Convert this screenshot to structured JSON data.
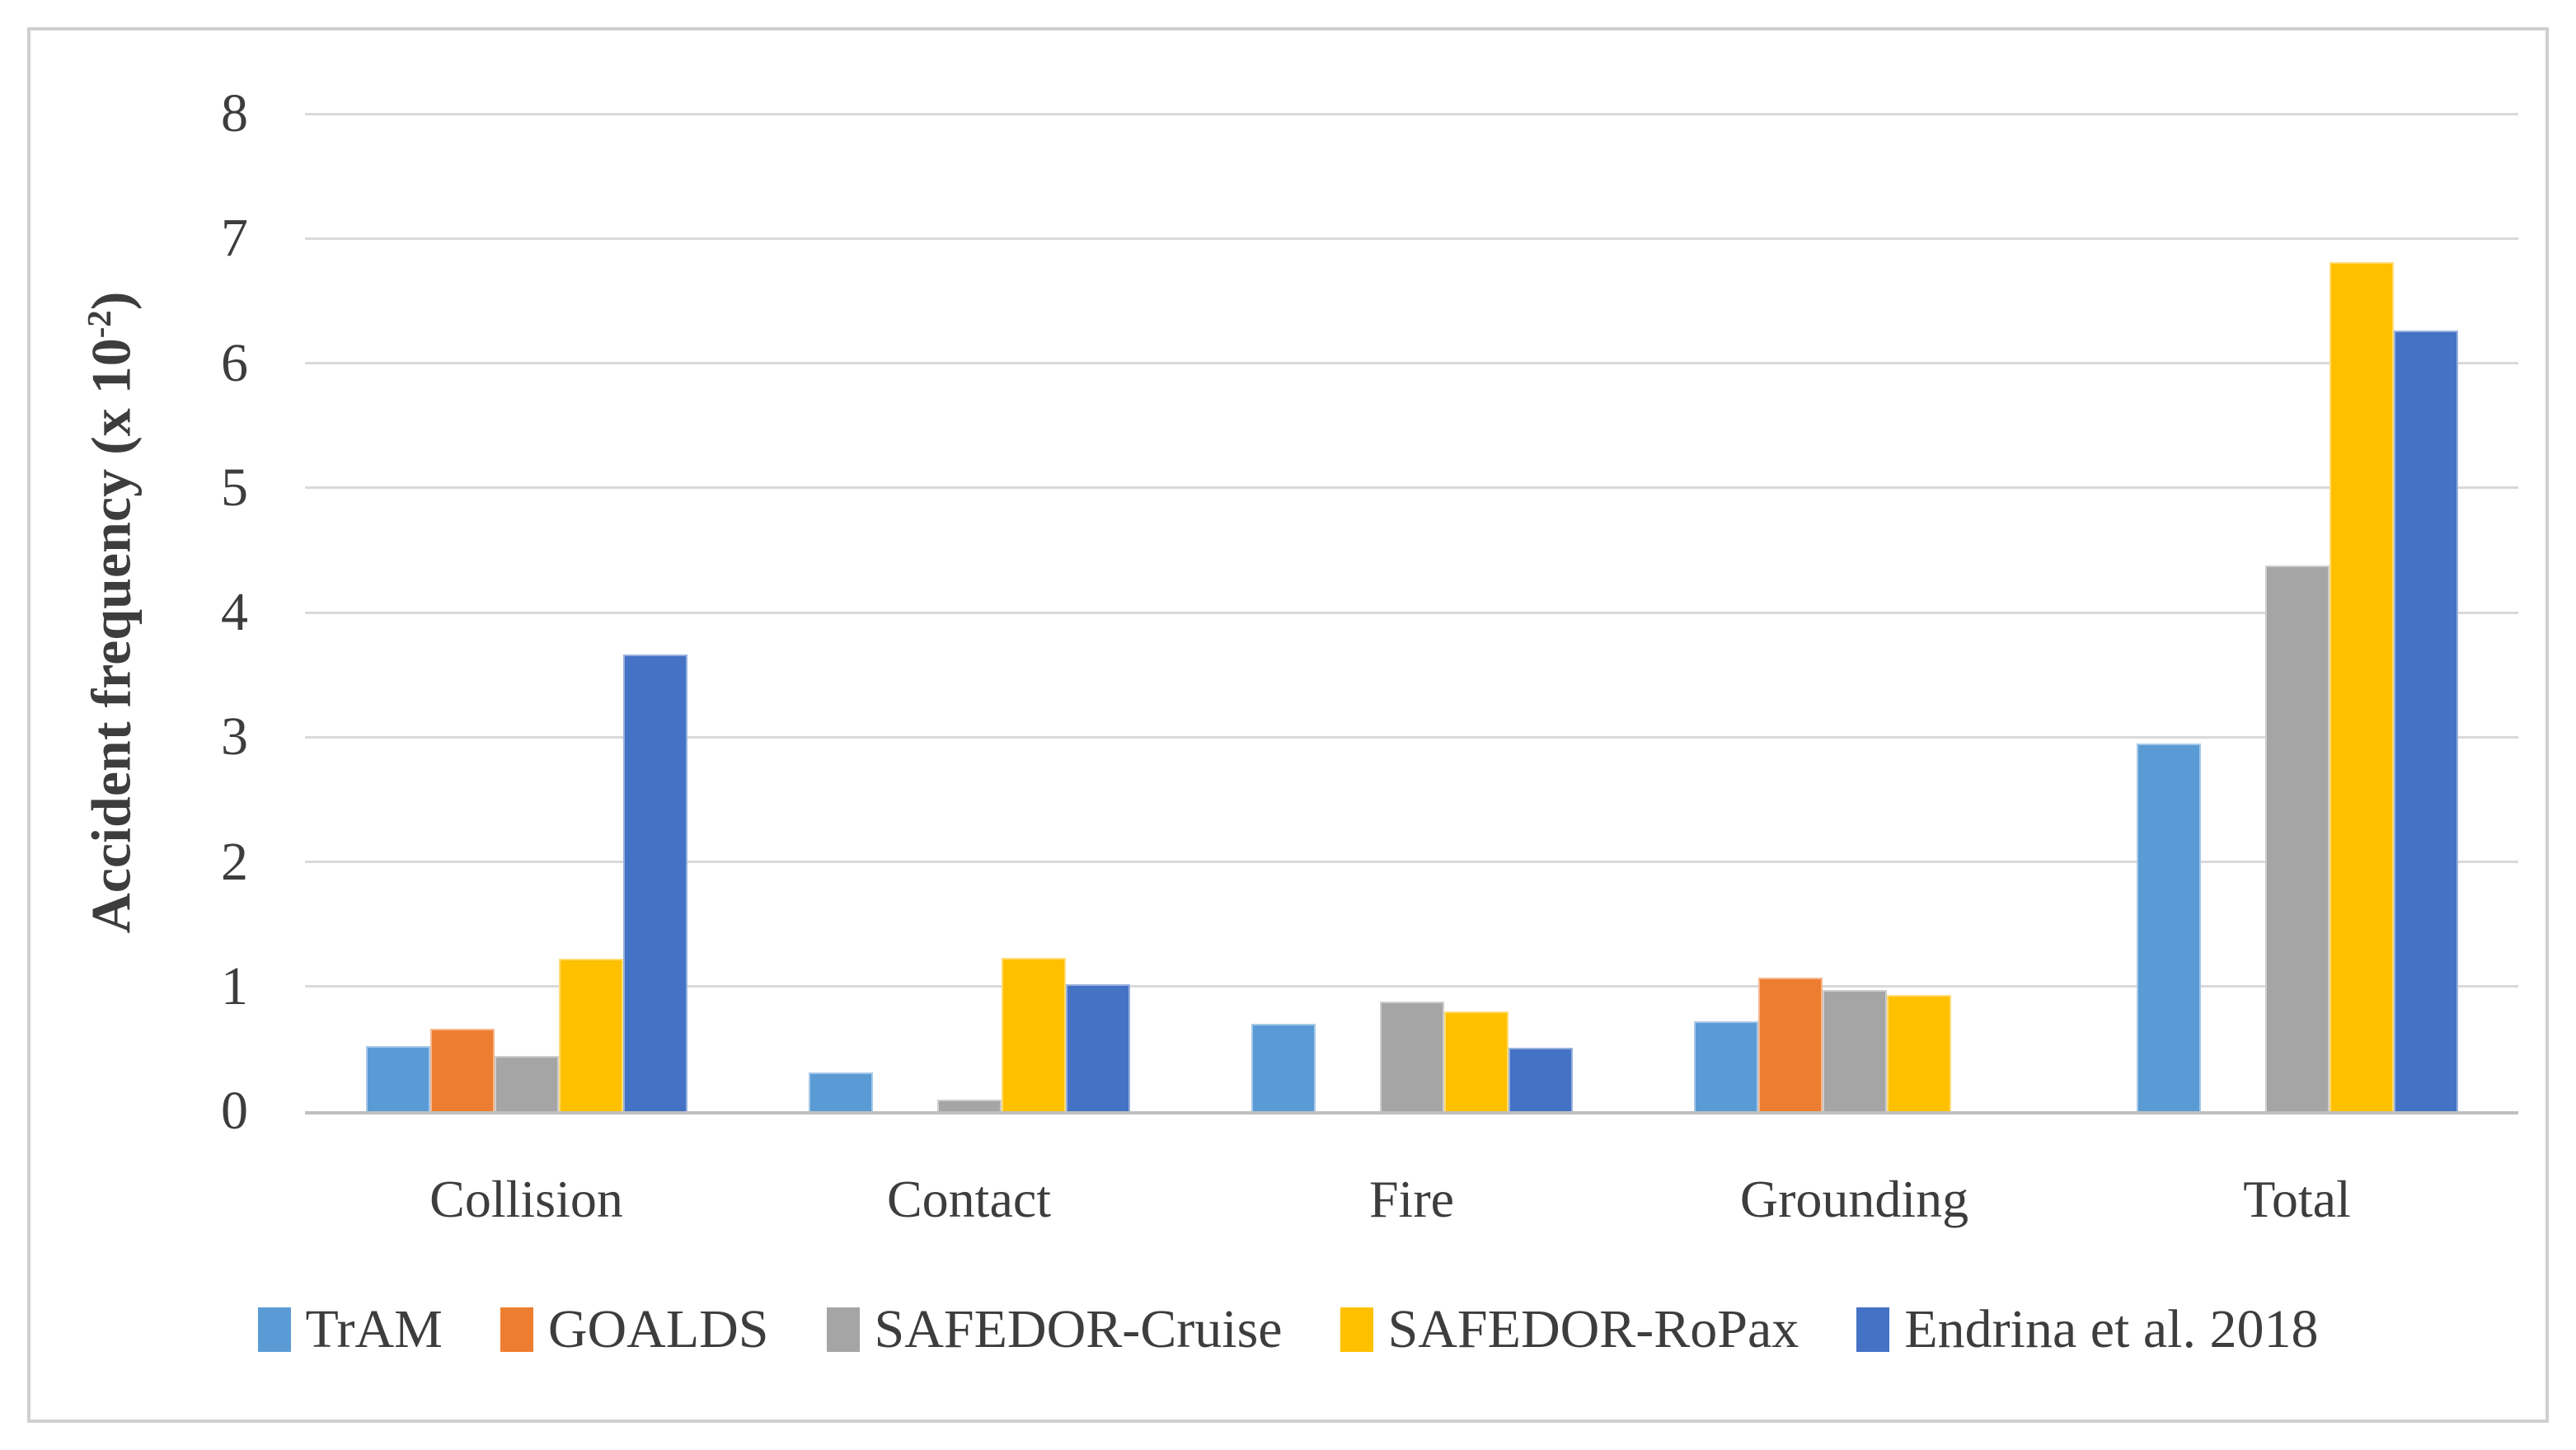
{
  "figure": {
    "ylabel_main": "Accident frequency (x 10",
    "ylabel_sup": "-2",
    "ylabel_close": ")"
  },
  "chart_data": {
    "type": "bar",
    "title": "",
    "xlabel": "",
    "ylabel": "Accident frequency (x 10^-2)",
    "categories": [
      "Collision",
      "Contact",
      "Fire",
      "Grounding",
      "Total"
    ],
    "series": [
      {
        "name": "TrAM",
        "color": "#5B9BD5",
        "values": [
          0.52,
          0.31,
          0.7,
          0.72,
          2.95
        ]
      },
      {
        "name": "GOALDS",
        "color": "#ED7D31",
        "values": [
          0.66,
          0,
          0,
          1.07,
          0
        ]
      },
      {
        "name": "SAFEDOR-Cruise",
        "color": "#A5A5A5",
        "values": [
          0.44,
          0.09,
          0.88,
          0.97,
          4.38
        ]
      },
      {
        "name": "SAFEDOR-RoPax",
        "color": "#FFC000",
        "values": [
          1.22,
          1.23,
          0.8,
          0.93,
          6.81
        ]
      },
      {
        "name": "Endrina et al. 2018",
        "color": "#4472C4",
        "values": [
          3.66,
          1.02,
          0.51,
          0,
          6.26
        ]
      }
    ],
    "ylim": [
      0,
      8
    ],
    "yticks": [
      0,
      1,
      2,
      3,
      4,
      5,
      6,
      7,
      8
    ],
    "grid": "horizontal",
    "legend_position": "bottom",
    "note_zero_values_rendered_as_absent_bars": true
  },
  "style": {
    "background": "#FFFFFF",
    "frame_border_color": "#CFCFCF",
    "gridline_color": "#D9D9D9",
    "baseline_color": "#BFBFBF",
    "text_color": "#3D3D3D"
  }
}
